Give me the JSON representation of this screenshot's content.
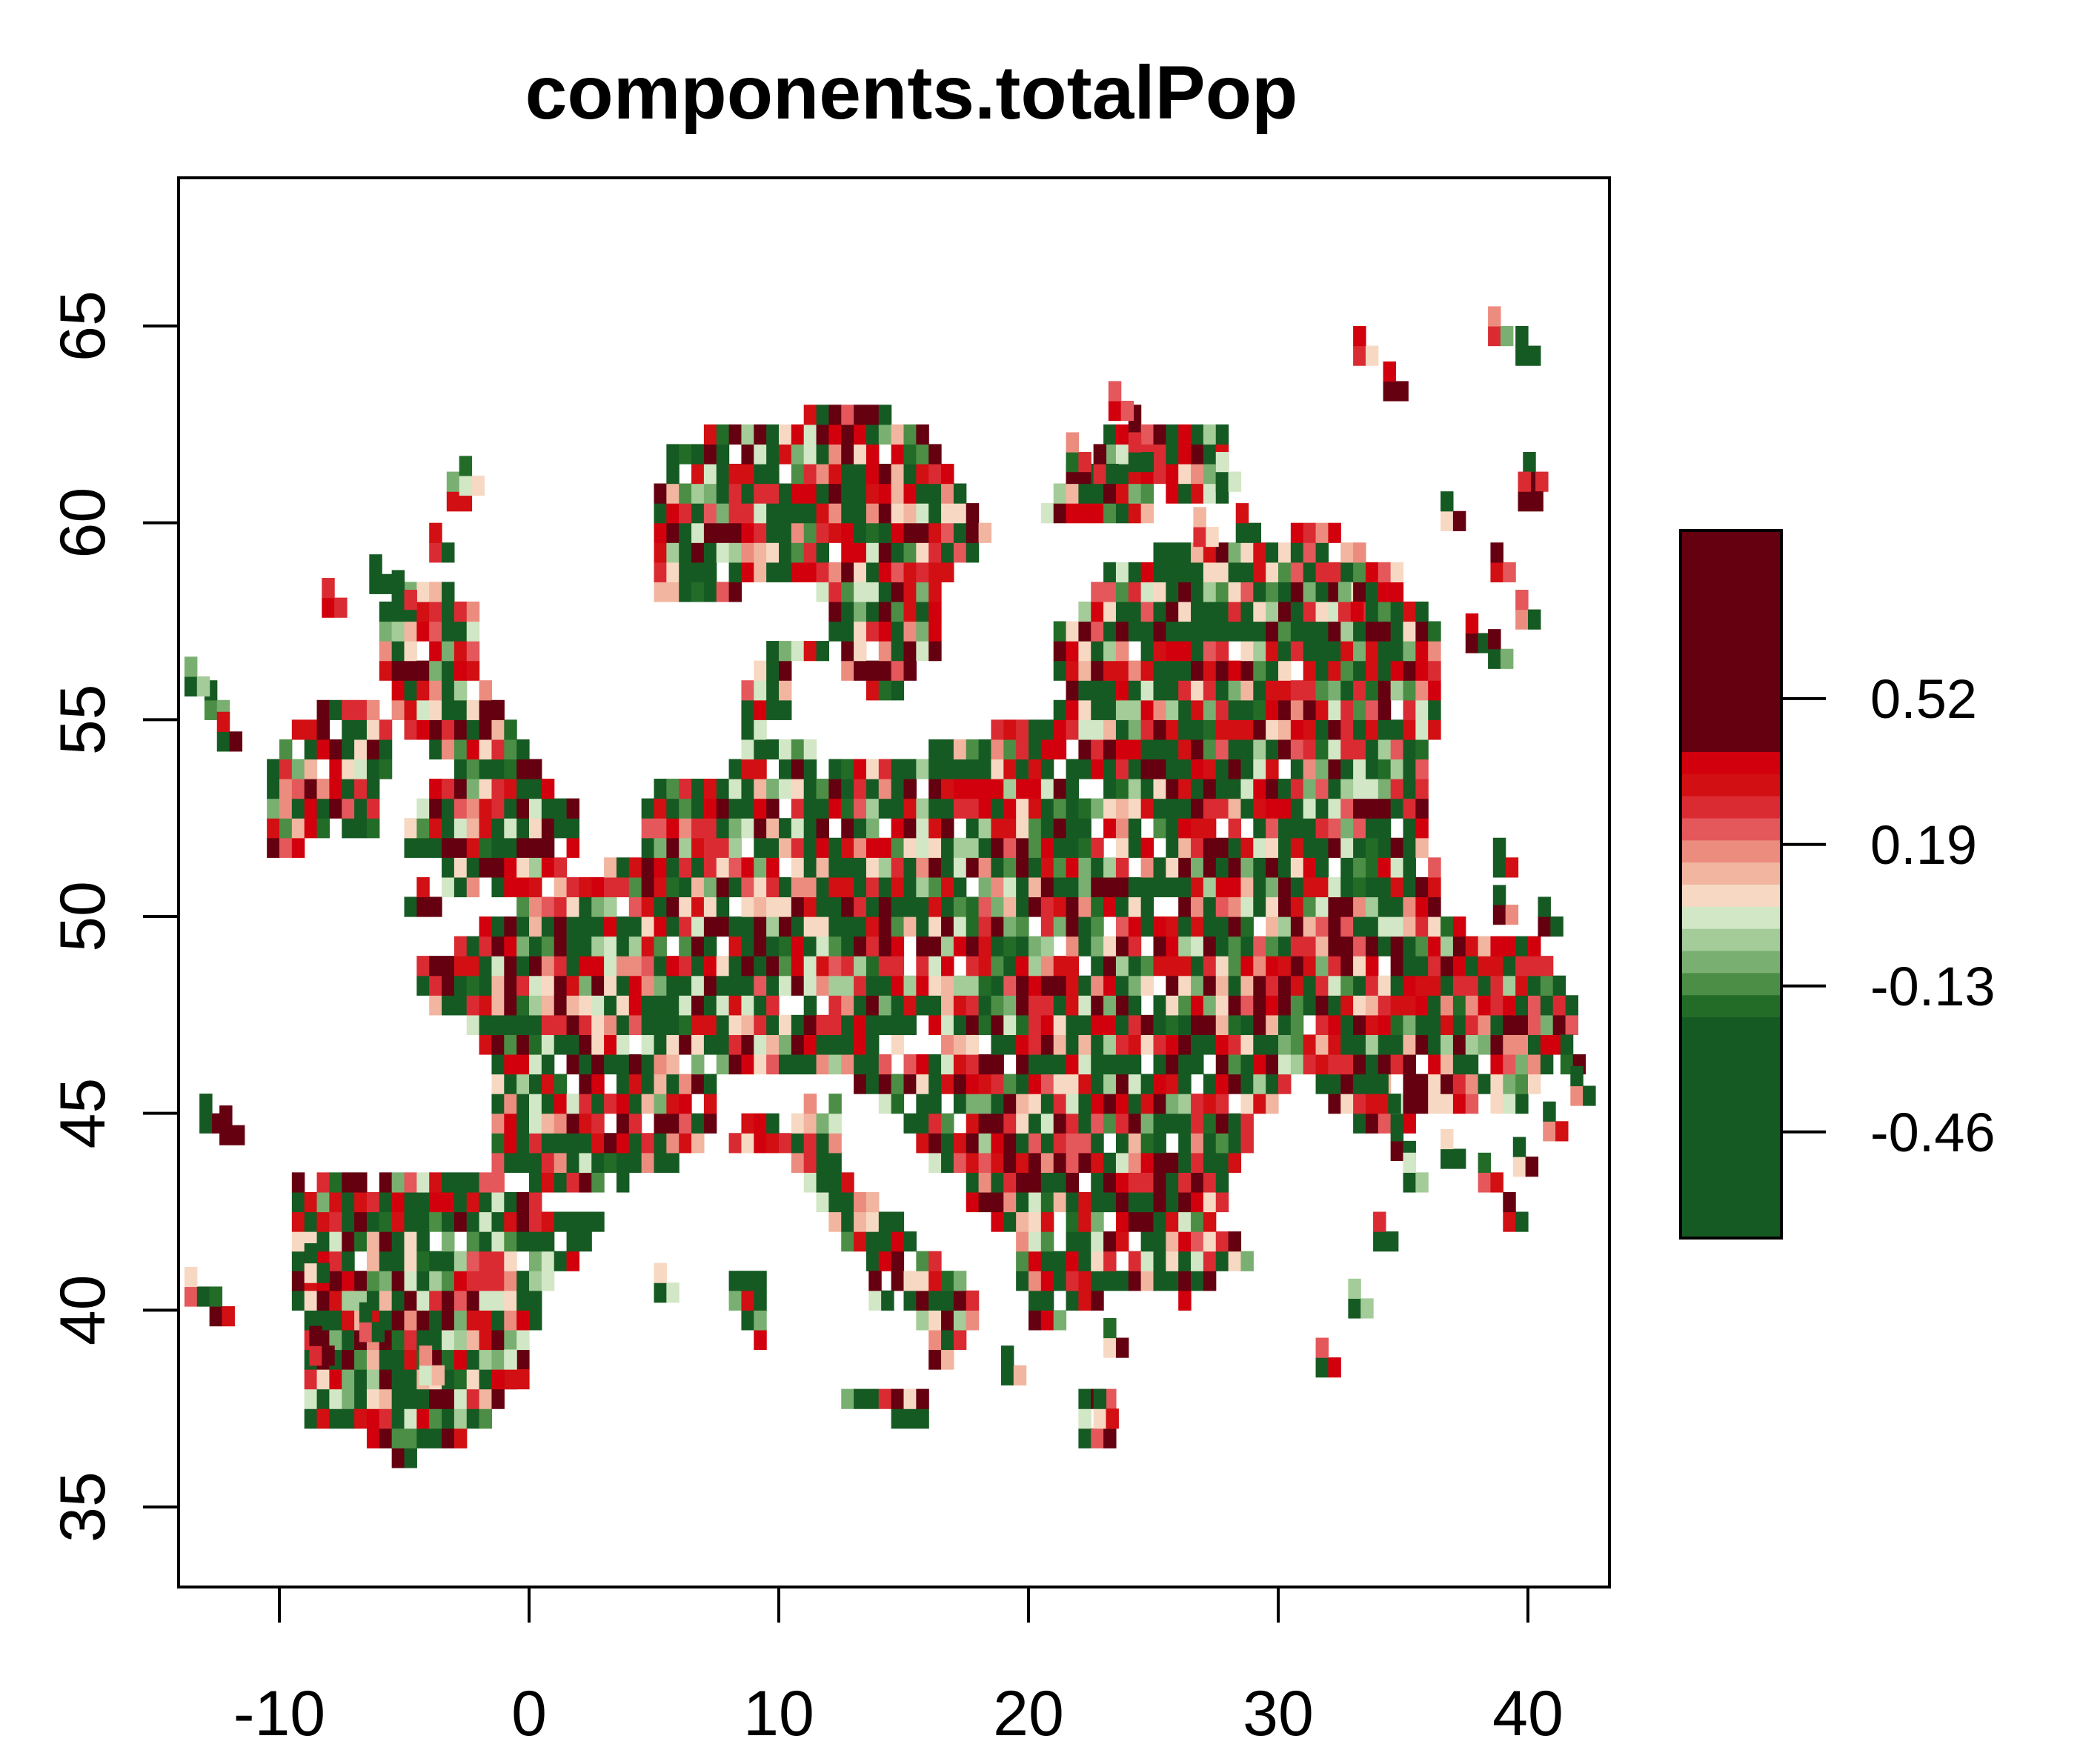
{
  "chart_data": {
    "type": "heatmap",
    "title": "components.totalPop",
    "xlabel": "",
    "ylabel": "",
    "xlim": [
      -14,
      43.3
    ],
    "ylim": [
      33,
      68
    ],
    "x_ticks": [
      -10,
      0,
      10,
      20,
      30,
      40
    ],
    "x_tick_labels": [
      "-10",
      "0",
      "10",
      "20",
      "30",
      "40"
    ],
    "y_ticks": [
      35,
      40,
      45,
      50,
      55,
      60,
      65
    ],
    "y_tick_labels": [
      "35",
      "40",
      "45",
      "50",
      "55",
      "60",
      "65"
    ],
    "grid": false,
    "legend": {
      "placement": "right",
      "breaks": [
        -0.7,
        -0.2,
        -0.15,
        -0.1,
        -0.05,
        0.0,
        0.05,
        0.1,
        0.15,
        0.2,
        0.25,
        0.3,
        0.35,
        0.4,
        0.9
      ],
      "colors": [
        "#165a23",
        "#236c28",
        "#4c8e45",
        "#79b072",
        "#a3cc98",
        "#d2e7c5",
        "#f7d9c3",
        "#f1b5a0",
        "#ec8c7f",
        "#e4575b",
        "#da2b33",
        "#d20f13",
        "#d2000d",
        "#650010"
      ],
      "tick_values": [
        0.52,
        0.19,
        -0.13,
        -0.46
      ],
      "tick_labels": [
        "0.52",
        "0.19",
        "-0.13",
        "-0.46"
      ]
    },
    "cell_size_degrees": 0.5,
    "land_regions_approx": [
      {
        "region": "Ireland",
        "lon": [
          -10.5,
          -6
        ],
        "lat": [
          51.5,
          55.5
        ]
      },
      {
        "region": "Great Britain",
        "lon": [
          -6,
          2
        ],
        "lat": [
          50,
          58.5
        ]
      },
      {
        "region": "Iberia",
        "lon": [
          -9.5,
          3
        ],
        "lat": [
          36.5,
          43.7
        ]
      },
      {
        "region": "France / Benelux",
        "lon": [
          -4.5,
          8
        ],
        "lat": [
          43,
          51.5
        ]
      },
      {
        "region": "Central Europe",
        "lon": [
          4,
          24
        ],
        "lat": [
          45.5,
          56
        ]
      },
      {
        "region": "Italy",
        "lon": [
          7,
          18.5
        ],
        "lat": [
          38,
          47
        ]
      },
      {
        "region": "Balkans",
        "lon": [
          13.5,
          29
        ],
        "lat": [
          39,
          47
        ]
      },
      {
        "region": "Scandinavia",
        "lon": [
          4.5,
          25
        ],
        "lat": [
          55,
          63
        ]
      },
      {
        "region": "Eastern Europe",
        "lon": [
          20,
          41
        ],
        "lat": [
          44,
          59
        ]
      }
    ]
  }
}
